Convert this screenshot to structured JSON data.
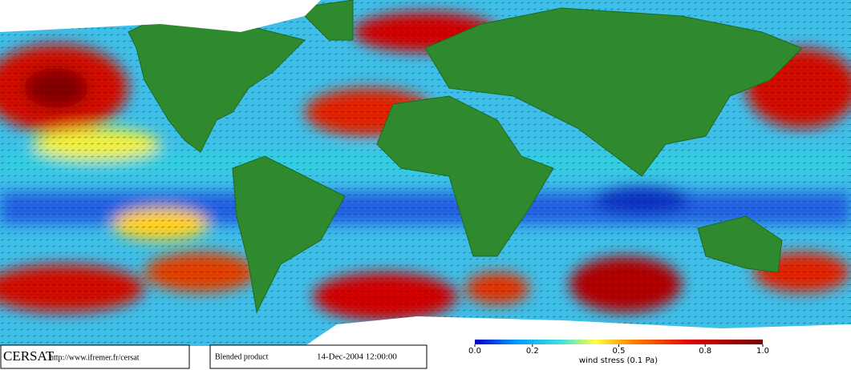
{
  "footer": {
    "logo": "CERSAT",
    "url": "http://www.ifremer.fr/cersat",
    "product": "Blended product",
    "date": "14-Dec-2004 12:00:00"
  },
  "colorbar": {
    "range": [
      0,
      1
    ],
    "ticks": [
      {
        "value": 0,
        "label": "0.0"
      },
      {
        "value": 0.2,
        "label": "0.2"
      },
      {
        "value": 0.5,
        "label": "0.5"
      },
      {
        "value": 0.8,
        "label": "0.8"
      },
      {
        "value": 1,
        "label": "1.0"
      }
    ],
    "label": "wind stress (0.1 Pa)"
  }
}
